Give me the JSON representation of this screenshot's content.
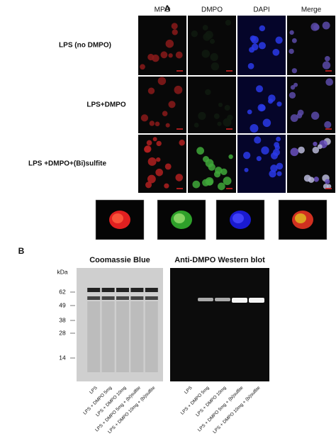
{
  "panel_a": {
    "label": "A",
    "columns": [
      "MPO",
      "DMPO",
      "DAPI",
      "Merge"
    ],
    "rows": [
      "LPS (no DMPO)",
      "LPS+DMPO",
      "LPS +DMPO+(Bi)sulfite"
    ]
  },
  "panel_b": {
    "label": "B",
    "markers_unit": "kDa",
    "markers": [
      "62",
      "49",
      "38",
      "28",
      "14"
    ],
    "gels": [
      {
        "title": "Coomassie Blue",
        "lanes": [
          "LPS",
          "LPS + DMPO 5mg",
          "LPS + DMPO 10mg",
          "LPS + DMPO 5mg + (bi)sulfite",
          "LPS + DMPO 10mg + (bi)sulfite"
        ]
      },
      {
        "title": "Anti-DMPO Western blot",
        "lanes": [
          "LPS",
          "LPS + DMPO 5mg",
          "LPS + DMPO 10mg",
          "LPS + DMPO 5mg + (bi)sulfite",
          "LPS + DMPO 10mg + (bi)sulfite"
        ]
      }
    ]
  }
}
